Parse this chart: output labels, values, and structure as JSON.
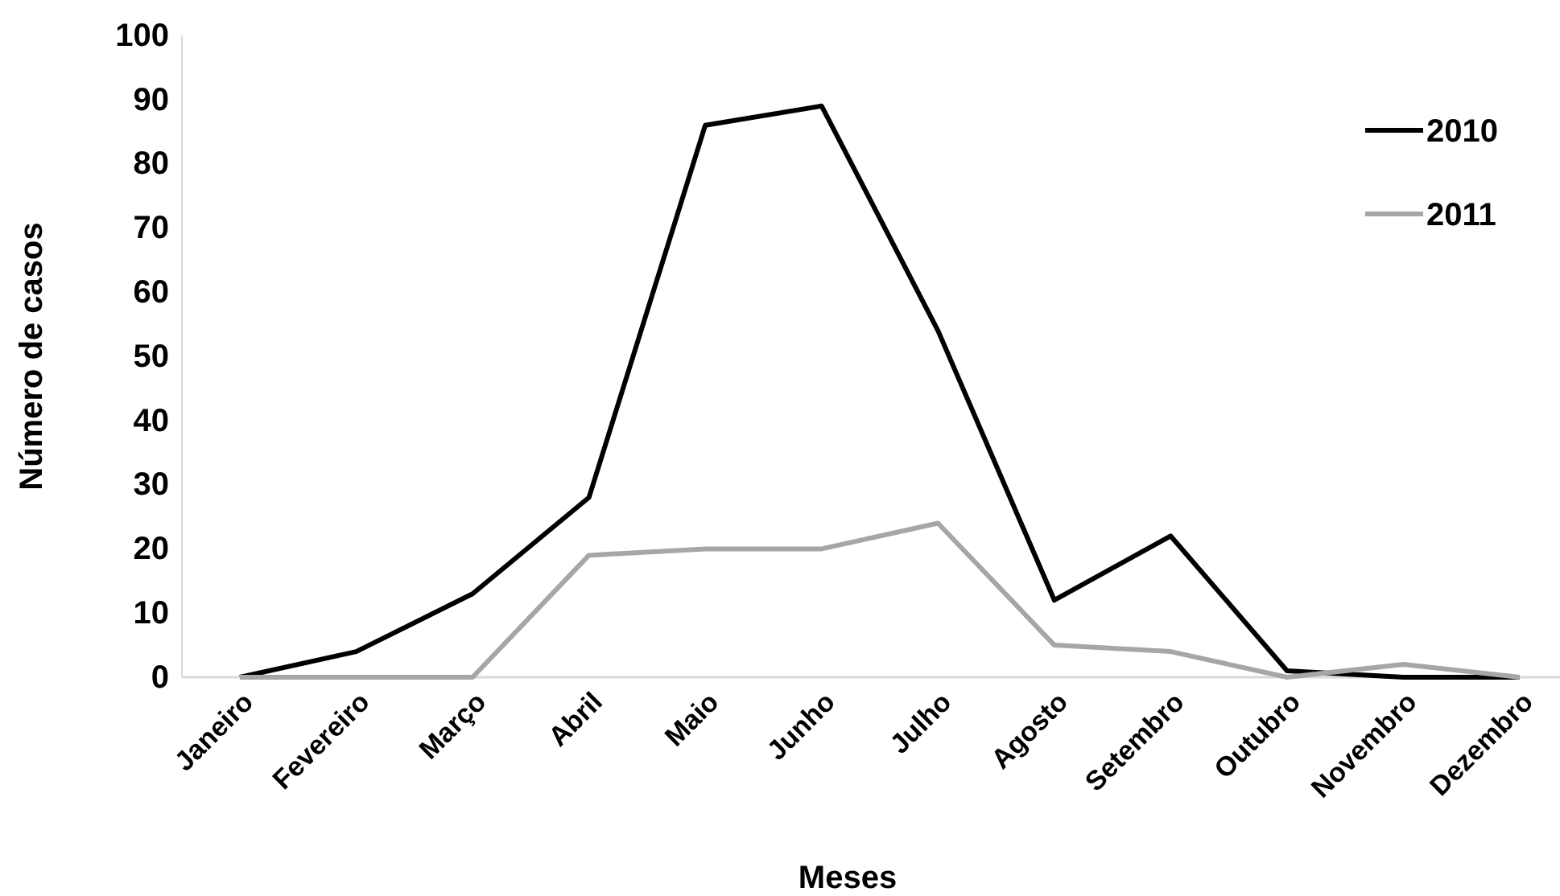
{
  "chart_data": {
    "type": "line",
    "xlabel": "Meses",
    "ylabel": "Número de casos",
    "categories": [
      "Janeiro",
      "Fevereiro",
      "Março",
      "Abril",
      "Maio",
      "Junho",
      "Julho",
      "Agosto",
      "Setembro",
      "Outubro",
      "Novembro",
      "Dezembro"
    ],
    "series": [
      {
        "name": "2010",
        "color": "#000000",
        "values": [
          0,
          4,
          13,
          28,
          86,
          89,
          54,
          12,
          22,
          1,
          0,
          0
        ]
      },
      {
        "name": "2011",
        "color": "#a6a6a6",
        "values": [
          0,
          0,
          0,
          19,
          20,
          20,
          24,
          5,
          4,
          0,
          2,
          0
        ]
      }
    ],
    "ylim": [
      0,
      100
    ],
    "yticks": [
      0,
      10,
      20,
      30,
      40,
      50,
      60,
      70,
      80,
      90,
      100
    ],
    "grid": false,
    "legend": "top right",
    "marker": "none",
    "line_style": "solid"
  }
}
